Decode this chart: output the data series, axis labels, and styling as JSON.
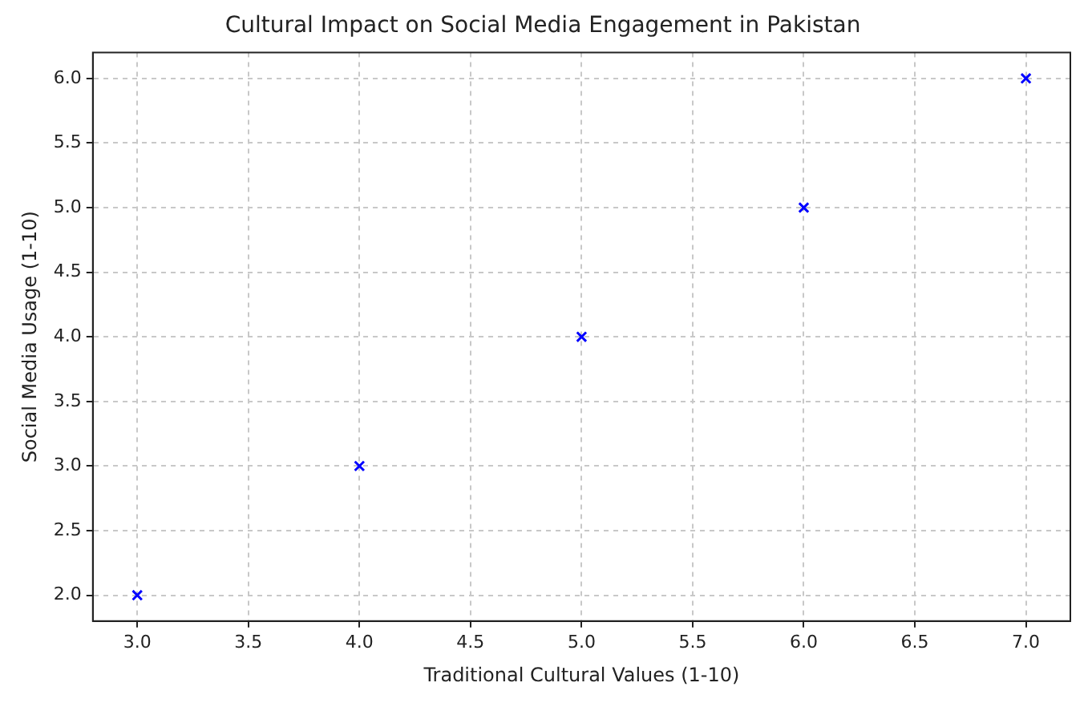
{
  "chart_data": {
    "type": "scatter",
    "title": "Cultural Impact on Social Media Engagement in Pakistan",
    "xlabel": "Traditional Cultural Values (1-10)",
    "ylabel": "Social Media Usage (1-10)",
    "x": [
      3,
      4,
      5,
      6,
      7
    ],
    "series": [
      {
        "color": "#0000ff",
        "values": [
          2,
          3,
          4,
          5,
          6
        ]
      }
    ],
    "xlim": [
      2.8,
      7.2
    ],
    "xticks": [
      {
        "value": 3,
        "label": "3.0"
      },
      3.5,
      {
        "value": 4,
        "label": "4.0"
      },
      4.5,
      {
        "value": 5,
        "label": "5.0"
      },
      5.5,
      {
        "value": 6,
        "label": "6.0"
      },
      6.5,
      {
        "value": 7,
        "label": "7.0"
      }
    ],
    "ylim": [
      1.8,
      6.2
    ],
    "yticks": [
      {
        "value": 2,
        "label": "2.0"
      },
      2.5,
      {
        "value": 3,
        "label": "3.0"
      },
      3.5,
      {
        "value": 4,
        "label": "4.0"
      },
      4.5,
      {
        "value": 5,
        "label": "5.0"
      },
      5.5,
      {
        "value": 6,
        "label": "6.0"
      }
    ],
    "grid": true,
    "marker": "cross",
    "legend": false
  }
}
